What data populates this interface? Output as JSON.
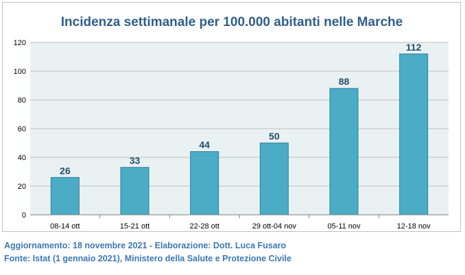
{
  "chart_data": {
    "type": "bar",
    "title": "Incidenza settimanale per 100.000 abitanti nelle Marche",
    "xlabel": "",
    "ylabel": "",
    "categories": [
      "08-14 ott",
      "15-21 ott",
      "22-28 ott",
      "29 ott-04 nov",
      "05-11 nov",
      "12-18 nov"
    ],
    "values": [
      26,
      33,
      44,
      50,
      88,
      112
    ],
    "data_labels": [
      "26",
      "33",
      "44",
      "50",
      "88",
      "112"
    ],
    "ylim": [
      0,
      120
    ],
    "yticks": [
      0,
      20,
      40,
      60,
      80,
      100,
      120
    ],
    "grid": true,
    "legend": "none",
    "colors": {
      "bar_fill": "#4bacc6",
      "bar_stroke": "#2c7f96",
      "plot_bg": "#eaf1f2",
      "gridline": "#bfbfbf",
      "title": "#2f5f8a",
      "data_label": "#1f4e6b"
    }
  },
  "footer": {
    "line1": "Aggiornamento: 18 novembre 2021 - Elaborazione: Dott. Luca Fusaro",
    "line2": "Fonte: Istat (1 gennaio 2021), Ministero della Salute e Protezione Civile"
  }
}
